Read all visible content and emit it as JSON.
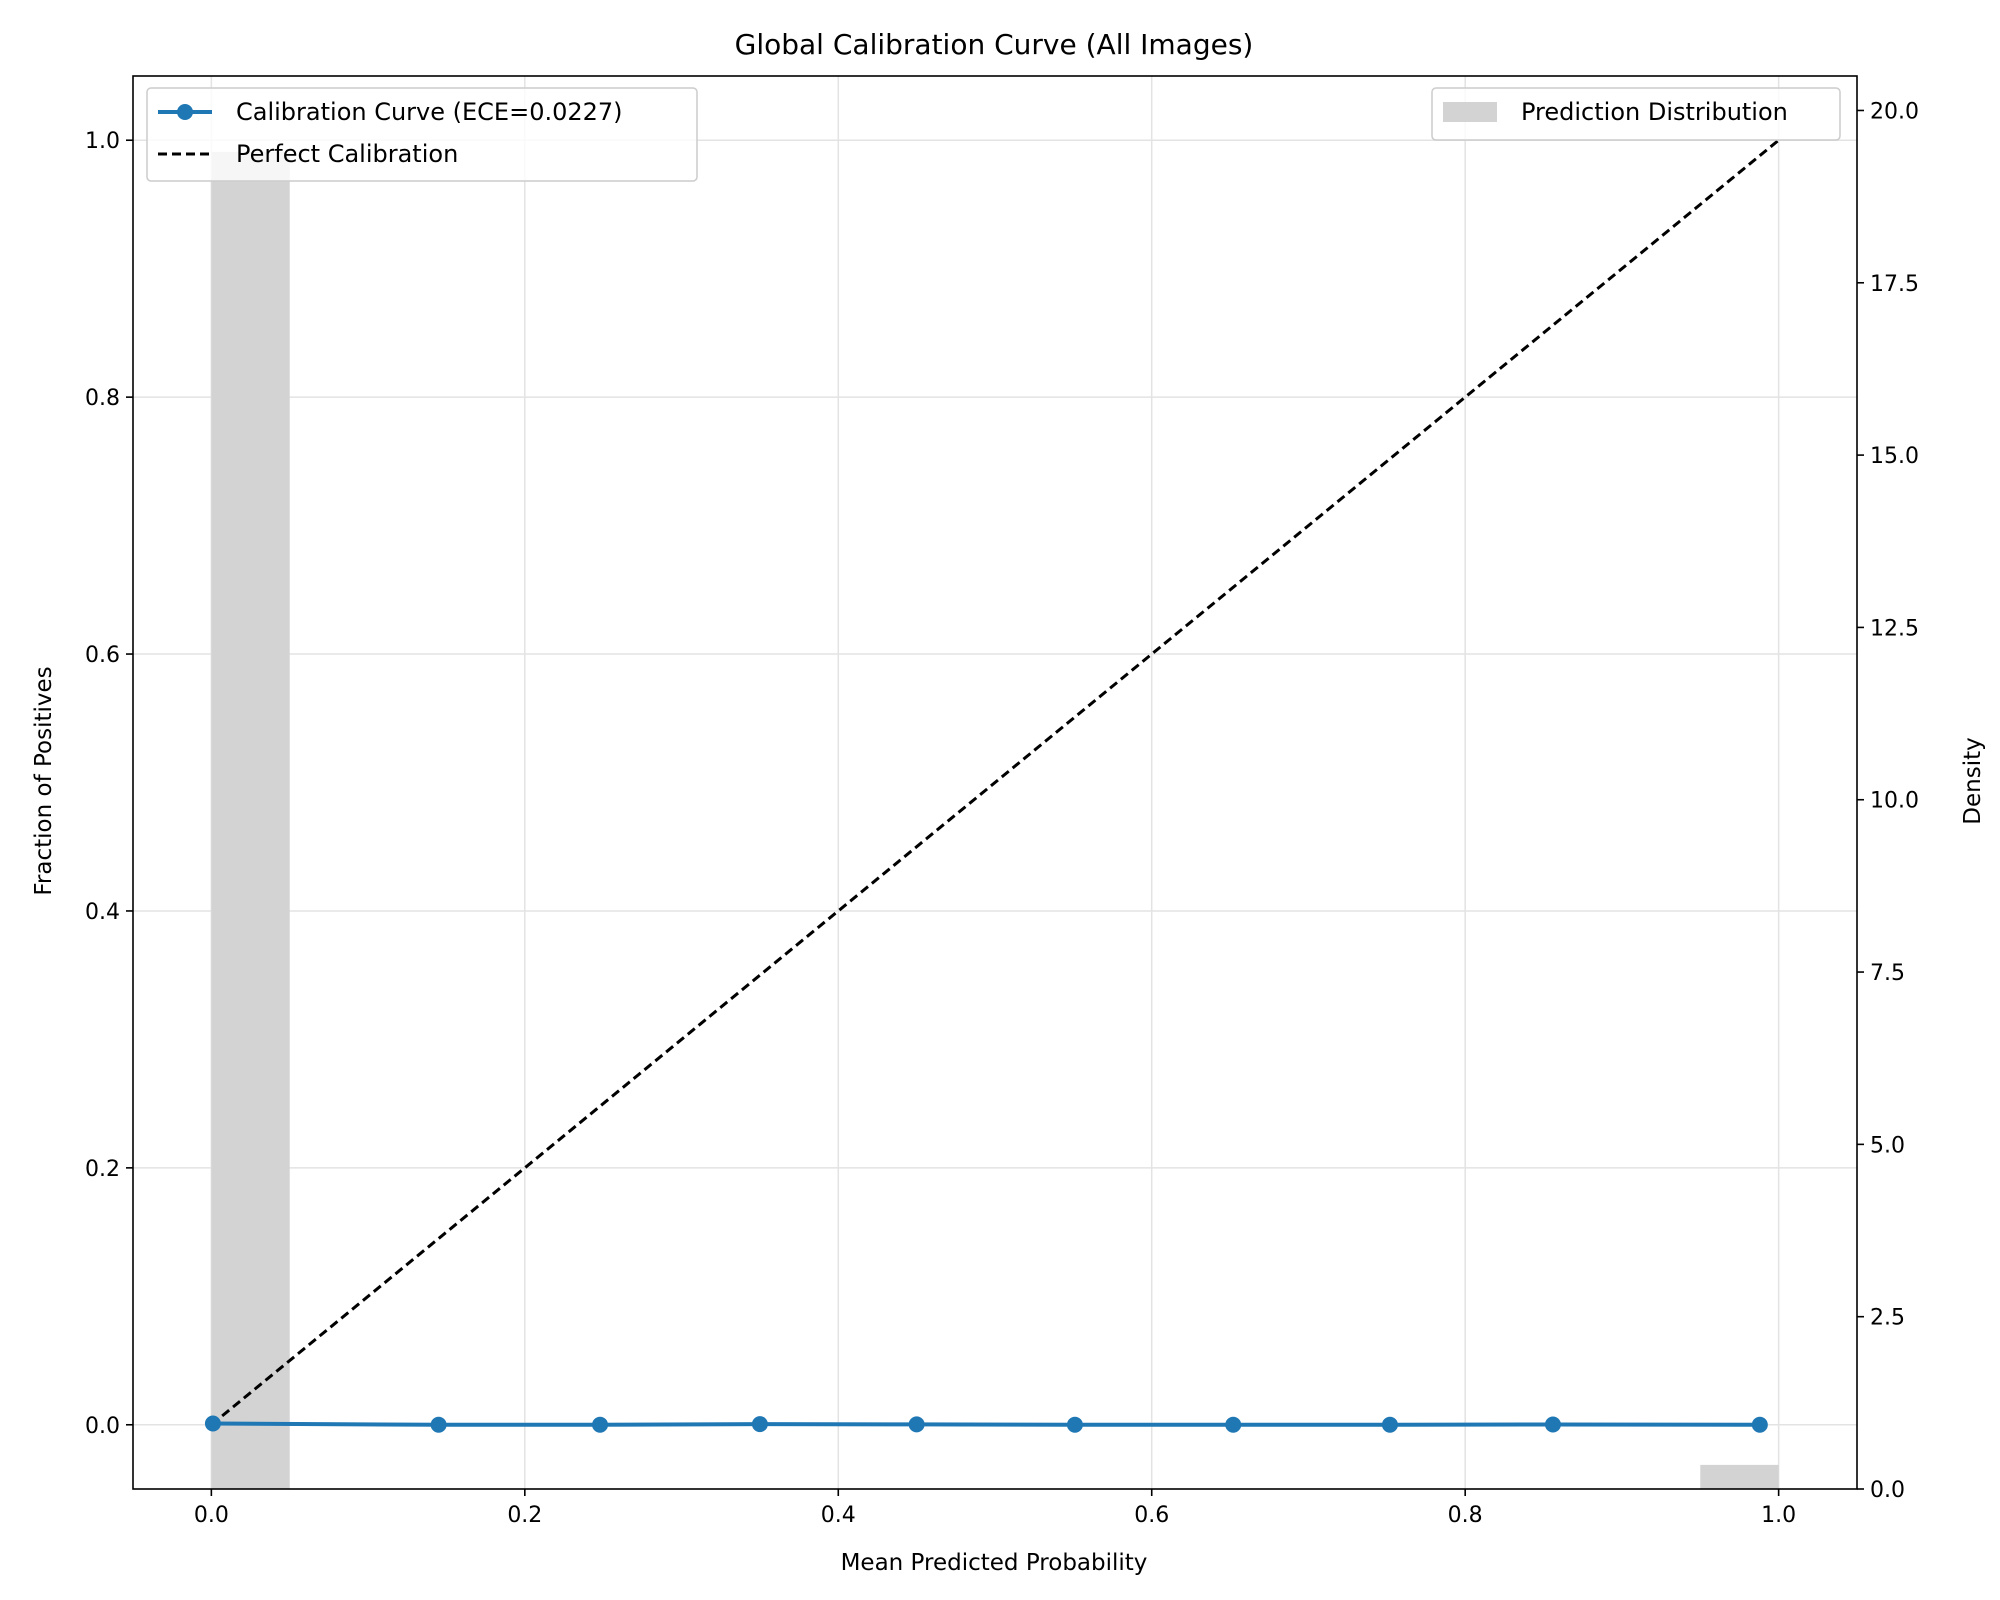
{
  "chart_data": {
    "type": "line",
    "title": "Global Calibration Curve (All Images)",
    "xlabel": "Mean Predicted Probability",
    "ylabel": "Fraction of Positives",
    "y2label": "Density",
    "xlim": [
      -0.05,
      1.05
    ],
    "ylim": [
      -0.05,
      1.05
    ],
    "y2lim": [
      0,
      20.5
    ],
    "xticks": [
      "0.0",
      "0.2",
      "0.4",
      "0.6",
      "0.8",
      "1.0"
    ],
    "yticks": [
      "0.0",
      "0.2",
      "0.4",
      "0.6",
      "0.8",
      "1.0"
    ],
    "y2ticks": [
      "0.0",
      "2.5",
      "5.0",
      "7.5",
      "10.0",
      "12.5",
      "15.0",
      "17.5",
      "20.0"
    ],
    "grid": true,
    "series": [
      {
        "name": "Calibration Curve (ECE=0.0227)",
        "type": "line",
        "color": "#1f77b4",
        "marker": "circle",
        "x": [
          0.001,
          0.145,
          0.248,
          0.35,
          0.45,
          0.551,
          0.652,
          0.752,
          0.856,
          0.988
        ],
        "y": [
          0.001,
          0.0,
          0.0,
          0.0005,
          0.0003,
          0.0,
          0.0,
          0.0,
          0.0002,
          0.0
        ]
      },
      {
        "name": "Perfect Calibration",
        "type": "line",
        "color": "#000000",
        "style": "dashed",
        "x": [
          0,
          1
        ],
        "y": [
          0,
          1
        ]
      },
      {
        "name": "Prediction Distribution",
        "type": "histogram",
        "axis": "right",
        "color": "#d3d3d3",
        "bins": [
          [
            0.0,
            0.05
          ],
          [
            0.95,
            1.0
          ]
        ],
        "values": [
          19.4,
          0.35
        ]
      }
    ],
    "legend_left": {
      "placement": "upper left",
      "entries": [
        "Calibration Curve (ECE=0.0227)",
        "Perfect Calibration"
      ]
    },
    "legend_right": {
      "placement": "upper right",
      "entries": [
        "Prediction Distribution"
      ]
    }
  }
}
